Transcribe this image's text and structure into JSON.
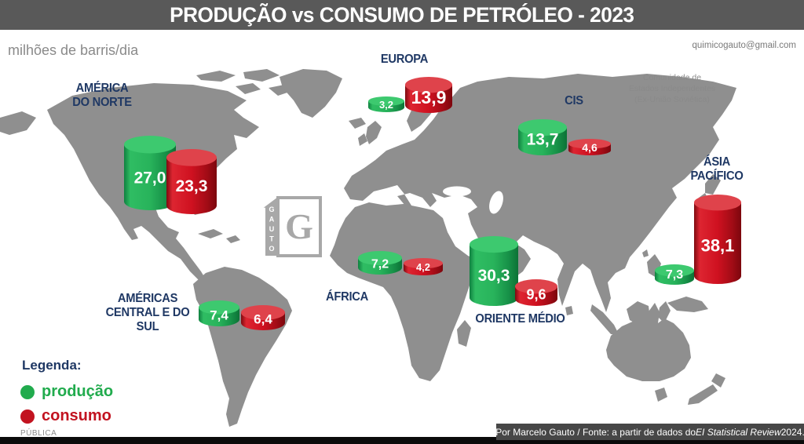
{
  "title": "PRODUÇÃO vs CONSUMO DE PETRÓLEO - 2023",
  "subtitle": "milhões de barris/dia",
  "email": "quimicogauto@gmail.com",
  "cis_note": "Comunidade de\nEstados Independentes\n(Ex-União Soviética)",
  "logo": {
    "name": "GAUTO",
    "cover_letter": "G"
  },
  "legend": {
    "title": "Legenda:",
    "items": [
      {
        "label": "produção",
        "color": "#21ab4d"
      },
      {
        "label": "consumo",
        "color": "#c21320"
      }
    ]
  },
  "footer": {
    "classification": "PÚBLICA",
    "source_prefix": "Por Marcelo Gauto / Fonte: a partir de dados do ",
    "source_italic": "EI Statistical Review",
    "source_suffix": " 2024."
  },
  "colors": {
    "producao": "#21ab4d",
    "consumo": "#c21320",
    "title_bar": "#595959",
    "map_gray": "#8f8f8f",
    "label_navy": "#1f3864"
  },
  "chart_data": {
    "type": "bar",
    "title": "PRODUÇÃO vs CONSUMO DE PETRÓLEO - 2023",
    "unit": "milhões de barris/dia",
    "series_names": [
      "produção",
      "consumo"
    ],
    "regions": [
      {
        "id": "america-do-norte",
        "label": "AMÉRICA\nDO NORTE",
        "producao": 27.0,
        "consumo": 23.3
      },
      {
        "id": "americas-central-e-do-sul",
        "label": "AMÉRICAS\nCENTRAL E DO\nSUL",
        "producao": 7.4,
        "consumo": 6.4
      },
      {
        "id": "europa",
        "label": "EUROPA",
        "producao": 3.2,
        "consumo": 13.9
      },
      {
        "id": "cis",
        "label": "CIS",
        "producao": 13.7,
        "consumo": 4.6
      },
      {
        "id": "africa",
        "label": "ÁFRICA",
        "producao": 7.2,
        "consumo": 4.2
      },
      {
        "id": "oriente-medio",
        "label": "ORIENTE MÉDIO",
        "producao": 30.3,
        "consumo": 9.6
      },
      {
        "id": "asia-pacifico",
        "label": "ÁSIA\nPACÍFICO",
        "producao": 7.3,
        "consumo": 38.1
      }
    ]
  }
}
